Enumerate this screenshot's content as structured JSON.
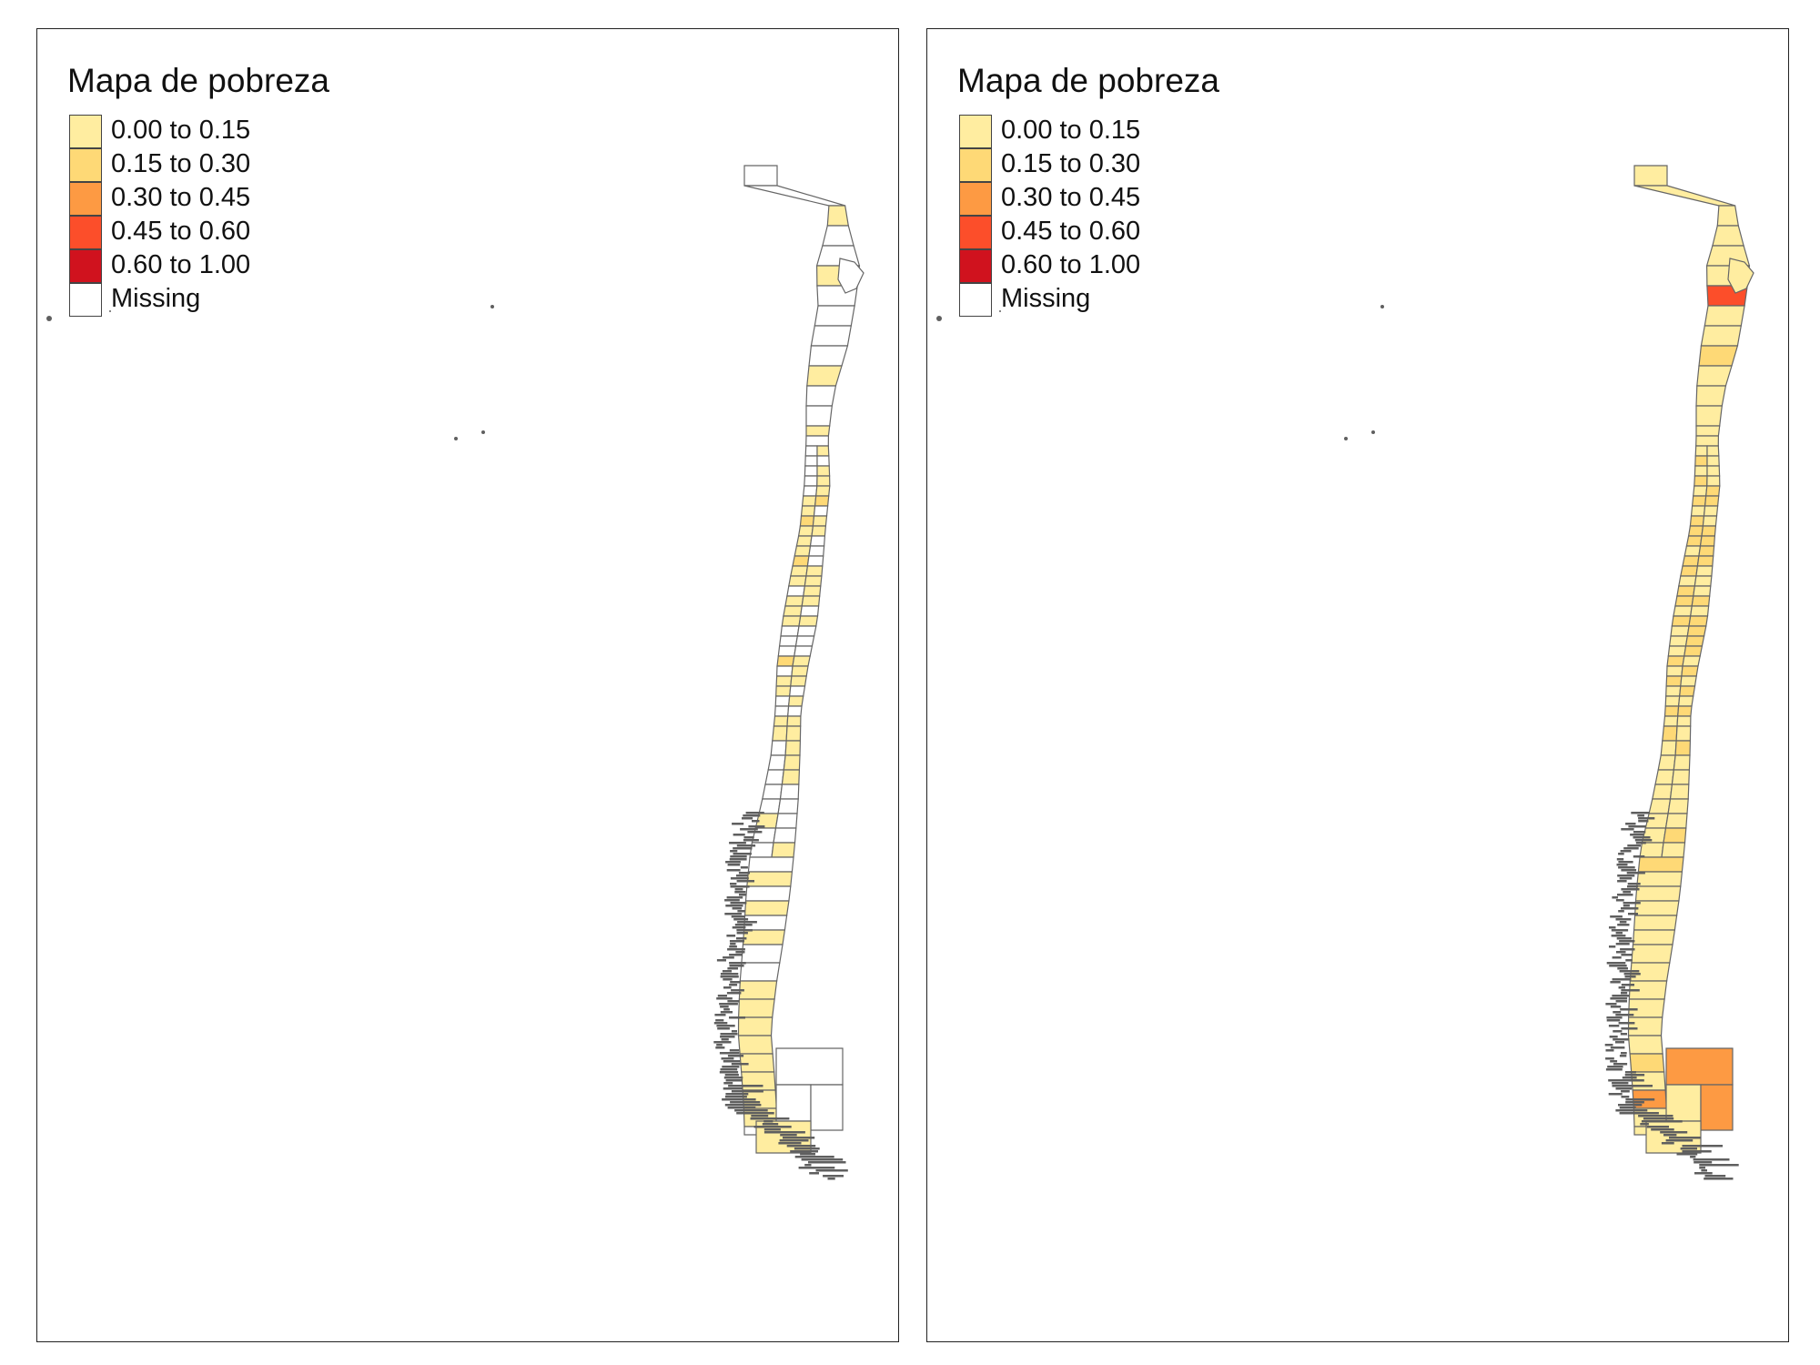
{
  "maps": [
    {
      "title": "Mapa de pobreza",
      "legend": [
        {
          "label": "0.00 to 0.15",
          "color": "#FFEDA0"
        },
        {
          "label": "0.15 to 0.30",
          "color": "#FED976"
        },
        {
          "label": "0.30 to 0.45",
          "color": "#FD9A43"
        },
        {
          "label": "0.45 to 0.60",
          "color": "#FC4E2A"
        },
        {
          "label": "0.60 to 1.00",
          "color": "#D0121E"
        },
        {
          "label": "Missing",
          "color": "#FFFFFF"
        }
      ],
      "coverage": "mostly-missing"
    },
    {
      "title": "Mapa de pobreza",
      "legend": [
        {
          "label": "0.00 to 0.15",
          "color": "#FFEDA0"
        },
        {
          "label": "0.15 to 0.30",
          "color": "#FED976"
        },
        {
          "label": "0.30 to 0.45",
          "color": "#FD9A43"
        },
        {
          "label": "0.45 to 0.60",
          "color": "#FC4E2A"
        },
        {
          "label": "0.60 to 1.00",
          "color": "#D0121E"
        },
        {
          "label": "Missing",
          "color": "#FFFFFF"
        }
      ],
      "coverage": "complete"
    }
  ],
  "colors": {
    "border": "#666666",
    "frame": "#222222",
    "coast": "#5f5f5f"
  }
}
